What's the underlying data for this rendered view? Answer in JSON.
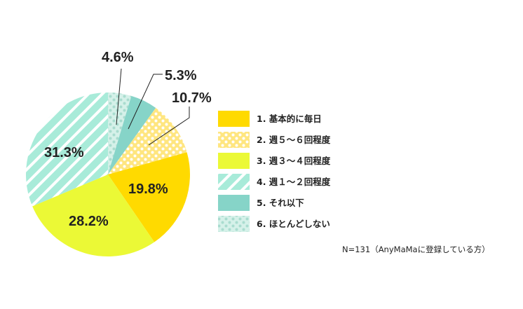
{
  "chart_data": {
    "type": "pie",
    "start": "12 o'clock, clockwise",
    "slices": [
      {
        "legend": "6. ほとんどしない",
        "value": 4.6,
        "label": "4.6%",
        "color": "#d5f1e9",
        "pattern": "dots",
        "pattern_color": "#a9dccf"
      },
      {
        "legend": "5. それ以下",
        "value": 5.3,
        "label": "5.3%",
        "color": "#86d4c8",
        "pattern": "solid"
      },
      {
        "legend": "2. 週５～６回程度",
        "value": 10.7,
        "label": "10.7%",
        "color": "#ffe680",
        "pattern": "dots",
        "pattern_color": "#ffffff"
      },
      {
        "legend": "1. 基本的に毎日",
        "value": 19.8,
        "label": "19.8%",
        "color": "#ffda00",
        "pattern": "solid"
      },
      {
        "legend": "3. 週３～４回程度",
        "value": 28.2,
        "label": "28.2%",
        "color": "#ebf936",
        "pattern": "solid"
      },
      {
        "legend": "4. 週１～２回程度",
        "value": 31.3,
        "label": "31.3%",
        "color": "#a8ebd9",
        "pattern": "stripes",
        "pattern_color": "#ffffff"
      }
    ],
    "legend_order": [
      3,
      2,
      4,
      5,
      1,
      0
    ],
    "legend_placement": "right",
    "note": "N=131（AnyMaMaに登録している方）"
  }
}
